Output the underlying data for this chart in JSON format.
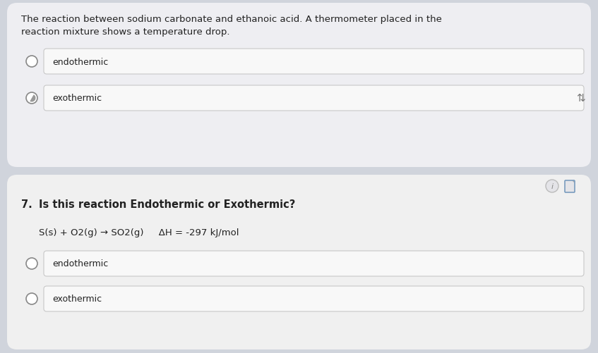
{
  "bg_color": "#d0d4dc",
  "card1_bg": "#eeeef2",
  "card2_bg": "#f0f0f0",
  "option_box_bg": "#f8f8f8",
  "option_box_border": "#c8c8c8",
  "text_color": "#222222",
  "question_prefix": "7.",
  "question_text": "Is this reaction Endothermic or Exothermic?",
  "card1_description_line1": "The reaction between sodium carbonate and ethanoic acid. A thermometer placed in the",
  "card1_description_line2": "reaction mixture shows a temperature drop.",
  "card1_options": [
    "endothermic",
    "exothermic"
  ],
  "card2_equation": "S(s) + O2(g) → SO2(g)     ΔH = -297 kJ/mol",
  "card2_options": [
    "endothermic",
    "exothermic"
  ],
  "font_size_desc": 9.5,
  "font_size_option": 9.0,
  "font_size_question": 10.5,
  "font_size_equation": 9.5,
  "radio_color": "#888888",
  "arrow_symbol": "⇅",
  "info_symbol": "i"
}
